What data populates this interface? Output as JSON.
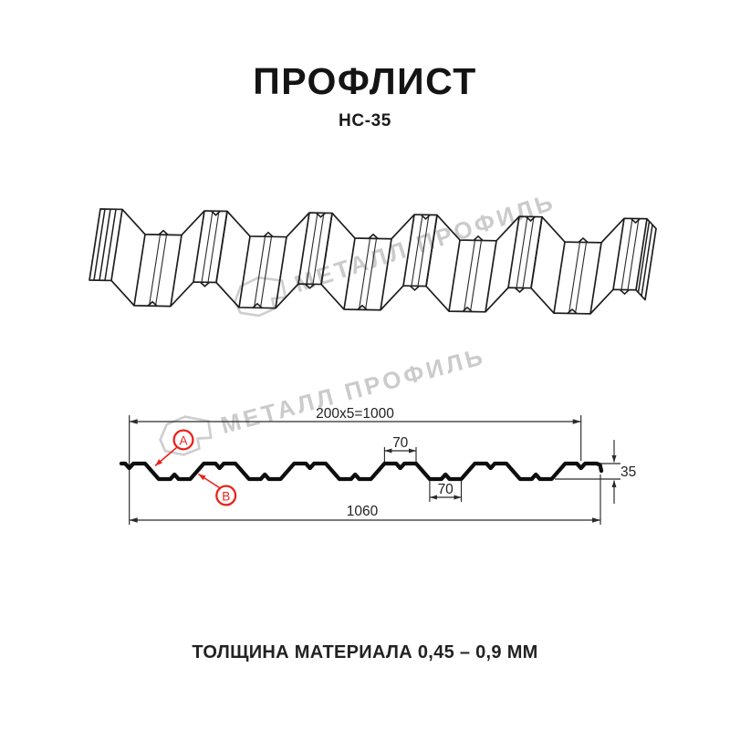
{
  "header": {
    "title": "ПРОФЛИСТ",
    "subtitle": "НС-35"
  },
  "watermark": {
    "text": "МЕТАЛЛ ПРОФИЛЬ",
    "color": "#c9c9c9"
  },
  "section": {
    "dimensions": {
      "module_width": "200x5=1000",
      "rib_top_width": "70",
      "rib_bottom_width": "70",
      "profile_height": "35",
      "overall_width": "1060"
    },
    "callouts": {
      "a": "А",
      "b": "В"
    },
    "accent_color": "#e9231b",
    "line_color": "#2a2a2a",
    "profile_color": "#0e0e0e"
  },
  "footer": {
    "note": "ТОЛЩИНА МАТЕРИАЛА 0,45 – 0,9 ММ"
  }
}
